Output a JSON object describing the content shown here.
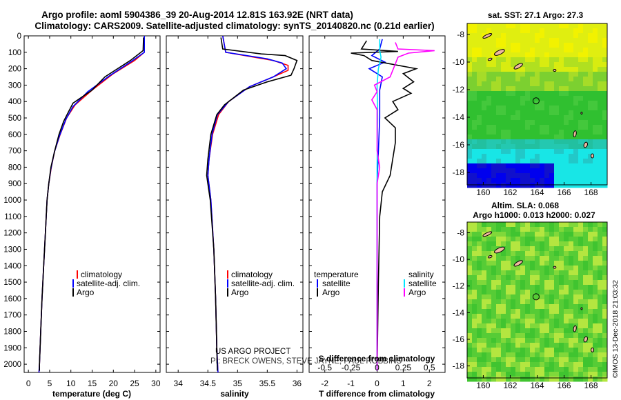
{
  "header": {
    "line1": "Argo profile: aoml 5904386_39 20-Aug-2014 12.81S 163.92E (NRT data)",
    "line2": "Climatology: CARS2009. Satellite-adjusted climatology: synTS_20140820.nc (0.21d earlier)"
  },
  "colors": {
    "climatology": "#ff0000",
    "satellite": "#0000ff",
    "argo": "#000000",
    "satellite_salinity": "#00e5ff",
    "argo_salinity_diff": "#ff00ff",
    "sst_map_yellow": "#e8f000",
    "sst_map_green": "#2ec22e",
    "land": "#f0b8a0"
  },
  "chart_data": [
    {
      "id": "temperature",
      "type": "line",
      "xlabel": "temperature (deg C)",
      "xlim": [
        -1,
        31
      ],
      "xticks": [
        0,
        5,
        10,
        15,
        20,
        25,
        30
      ],
      "ylim": [
        2050,
        0
      ],
      "yticks": [
        0,
        100,
        200,
        300,
        400,
        500,
        600,
        700,
        800,
        900,
        1000,
        1100,
        1200,
        1300,
        1400,
        1500,
        1600,
        1700,
        1800,
        1900,
        2000
      ],
      "legend": [
        "climatology",
        "satellite-adj. clim.",
        "Argo"
      ],
      "series": [
        {
          "name": "climatology",
          "color": "#ff0000",
          "points": [
            [
              27.3,
              0
            ],
            [
              27.3,
              100
            ],
            [
              25,
              150
            ],
            [
              20,
              230
            ],
            [
              15,
              330
            ],
            [
              11,
              420
            ],
            [
              9,
              500
            ],
            [
              7.5,
              600
            ],
            [
              6.2,
              700
            ],
            [
              5.4,
              800
            ],
            [
              4.8,
              900
            ],
            [
              4.4,
              1000
            ],
            [
              4.0,
              1200
            ],
            [
              3.6,
              1400
            ],
            [
              3.2,
              1600
            ],
            [
              2.9,
              1800
            ],
            [
              2.6,
              2000
            ],
            [
              2.5,
              2050
            ]
          ]
        },
        {
          "name": "satellite-adj. clim.",
          "color": "#0000ff",
          "points": [
            [
              27.3,
              0
            ],
            [
              27.3,
              100
            ],
            [
              24,
              160
            ],
            [
              19,
              245
            ],
            [
              14,
              340
            ],
            [
              10.5,
              430
            ],
            [
              8.8,
              510
            ],
            [
              7.3,
              610
            ],
            [
              6.1,
              710
            ],
            [
              5.3,
              810
            ],
            [
              4.8,
              900
            ],
            [
              4.4,
              1000
            ],
            [
              4.0,
              1200
            ],
            [
              3.6,
              1400
            ],
            [
              3.2,
              1600
            ],
            [
              2.9,
              1800
            ],
            [
              2.6,
              2000
            ],
            [
              2.5,
              2050
            ]
          ]
        },
        {
          "name": "Argo",
          "color": "#000000",
          "points": [
            [
              27.1,
              10
            ],
            [
              27.0,
              90
            ],
            [
              24,
              150
            ],
            [
              18,
              250
            ],
            [
              15,
              330
            ],
            [
              10.5,
              410
            ],
            [
              9.5,
              460
            ],
            [
              8.3,
              520
            ],
            [
              7.2,
              600
            ],
            [
              6.2,
              700
            ],
            [
              5.3,
              800
            ],
            [
              4.8,
              900
            ],
            [
              4.4,
              1000
            ],
            [
              4.0,
              1200
            ],
            [
              3.6,
              1400
            ],
            [
              3.2,
              1600
            ],
            [
              2.9,
              1800
            ],
            [
              2.6,
              2000
            ],
            [
              2.6,
              2040
            ]
          ]
        }
      ]
    },
    {
      "id": "salinity",
      "type": "line",
      "xlabel": "salinity",
      "xlim": [
        33.8,
        36.1
      ],
      "xticks": [
        34,
        34.5,
        35,
        35.5,
        36
      ],
      "ylim": [
        2050,
        0
      ],
      "legend": [
        "climatology",
        "satellite-adj. clim.",
        "Argo"
      ],
      "series": [
        {
          "name": "climatology",
          "color": "#ff0000",
          "points": [
            [
              34.75,
              0
            ],
            [
              34.8,
              100
            ],
            [
              35.6,
              150
            ],
            [
              35.85,
              180
            ],
            [
              35.85,
              210
            ],
            [
              35.6,
              250
            ],
            [
              35.2,
              310
            ],
            [
              34.85,
              400
            ],
            [
              34.68,
              480
            ],
            [
              34.58,
              600
            ],
            [
              34.52,
              750
            ],
            [
              34.5,
              850
            ],
            [
              34.55,
              1000
            ],
            [
              34.6,
              1300
            ],
            [
              34.63,
              1600
            ],
            [
              34.65,
              1900
            ],
            [
              34.67,
              2050
            ]
          ]
        },
        {
          "name": "satellite-adj. clim.",
          "color": "#0000ff",
          "points": [
            [
              34.75,
              0
            ],
            [
              34.8,
              100
            ],
            [
              35.5,
              140
            ],
            [
              35.75,
              165
            ],
            [
              35.82,
              200
            ],
            [
              35.6,
              250
            ],
            [
              35.2,
              310
            ],
            [
              34.85,
              400
            ],
            [
              34.66,
              480
            ],
            [
              34.57,
              600
            ],
            [
              34.52,
              750
            ],
            [
              34.5,
              850
            ],
            [
              34.55,
              1000
            ],
            [
              34.6,
              1300
            ],
            [
              34.63,
              1600
            ],
            [
              34.65,
              1900
            ],
            [
              34.67,
              2050
            ]
          ]
        },
        {
          "name": "Argo",
          "color": "#000000",
          "points": [
            [
              34.72,
              10
            ],
            [
              34.75,
              80
            ],
            [
              35.4,
              110
            ],
            [
              35.8,
              120
            ],
            [
              36.0,
              150
            ],
            [
              35.95,
              200
            ],
            [
              35.9,
              240
            ],
            [
              35.5,
              280
            ],
            [
              35.1,
              330
            ],
            [
              34.78,
              420
            ],
            [
              34.65,
              480
            ],
            [
              34.55,
              600
            ],
            [
              34.5,
              750
            ],
            [
              34.48,
              850
            ],
            [
              34.54,
              1000
            ],
            [
              34.6,
              1300
            ],
            [
              34.63,
              1600
            ],
            [
              34.65,
              1900
            ],
            [
              34.66,
              2040
            ]
          ]
        }
      ]
    },
    {
      "id": "difference",
      "type": "line",
      "xlabel": "T difference from climatology",
      "top_xlabel": "S difference from climatology",
      "xlim": [
        -2.6,
        2.6
      ],
      "xticks": [
        -2,
        -1,
        0,
        1,
        2
      ],
      "top_xticks": [
        "-0.5",
        "-0.25",
        "0",
        "0.25",
        "0.5"
      ],
      "ylim": [
        2050,
        0
      ],
      "legend_left_title": "temperature",
      "legend_right_title": "salinity",
      "legend": [
        "satellite",
        "Argo",
        "satellite",
        "Argo"
      ],
      "series": [
        {
          "name": "T satellite",
          "color": "#0000ff",
          "points": [
            [
              0.2,
              20
            ],
            [
              0.1,
              80
            ],
            [
              -0.2,
              120
            ],
            [
              0.3,
              160
            ],
            [
              -0.3,
              200
            ],
            [
              0.2,
              250
            ],
            [
              0.1,
              330
            ],
            [
              0.1,
              500
            ],
            [
              0.05,
              700
            ],
            [
              0.0,
              900
            ],
            [
              0.0,
              1200
            ],
            [
              0.0,
              2040
            ]
          ]
        },
        {
          "name": "T Argo",
          "color": "#000000",
          "points": [
            [
              -0.4,
              30
            ],
            [
              -0.6,
              80
            ],
            [
              0.8,
              95
            ],
            [
              -1.0,
              105
            ],
            [
              -0.5,
              120
            ],
            [
              -0.2,
              150
            ],
            [
              1.5,
              200
            ],
            [
              1.0,
              230
            ],
            [
              1.4,
              280
            ],
            [
              1.0,
              320
            ],
            [
              1.3,
              350
            ],
            [
              0.6,
              400
            ],
            [
              0.8,
              450
            ],
            [
              0.3,
              500
            ],
            [
              0.7,
              560
            ],
            [
              0.7,
              650
            ],
            [
              0.6,
              750
            ],
            [
              0.5,
              850
            ],
            [
              0.2,
              950
            ],
            [
              0.1,
              1100
            ],
            [
              0.05,
              1500
            ],
            [
              0.0,
              2040
            ]
          ]
        },
        {
          "name": "S satellite",
          "color": "#00e5ff",
          "points": [
            [
              0.1,
              20
            ],
            [
              0.1,
              90
            ],
            [
              0.15,
              130
            ],
            [
              0.05,
              200
            ],
            [
              0.0,
              300
            ],
            [
              0.02,
              500
            ],
            [
              0.0,
              800
            ],
            [
              0.0,
              1200
            ],
            [
              0.0,
              2040
            ]
          ]
        },
        {
          "name": "S Argo",
          "color": "#ff00ff",
          "points": [
            [
              0.7,
              40
            ],
            [
              0.8,
              80
            ],
            [
              2.2,
              90
            ],
            [
              1.2,
              105
            ],
            [
              0.8,
              130
            ],
            [
              0.5,
              250
            ],
            [
              -0.1,
              300
            ],
            [
              0.0,
              340
            ],
            [
              -0.2,
              390
            ],
            [
              0.0,
              450
            ],
            [
              0.0,
              700
            ],
            [
              0.1,
              800
            ],
            [
              0.0,
              900
            ],
            [
              0.0,
              2040
            ]
          ]
        }
      ]
    },
    {
      "id": "sst_map",
      "type": "heatmap",
      "title": "sat. SST: 27.1 Argo: 27.3",
      "xticks": [
        160,
        162,
        164,
        166,
        168
      ],
      "yticks": [
        -8,
        -10,
        -12,
        -14,
        -16,
        -18
      ],
      "xlim": [
        158.8,
        169.2
      ],
      "ylim": [
        -18.9,
        -7.2
      ],
      "argo_position": [
        163.92,
        -12.81
      ]
    },
    {
      "id": "sla_map",
      "type": "heatmap",
      "title": "Altim. SLA: 0.068",
      "subtitle": "Argo h1000: 0.013 h2000: 0.027",
      "xticks": [
        160,
        162,
        164,
        166,
        168
      ],
      "yticks": [
        -8,
        -10,
        -12,
        -14,
        -16,
        -18
      ],
      "xlim": [
        158.8,
        169.2
      ],
      "ylim": [
        -18.9,
        -7.2
      ],
      "argo_position": [
        163.92,
        -12.81
      ]
    }
  ],
  "legend_labels": {
    "climatology": "climatology",
    "satellite_adj": "satellite-adj. clim.",
    "argo": "Argo",
    "temperature": "temperature",
    "salinity": "salinity",
    "satellite": "satellite"
  },
  "credits": {
    "project": "US ARGO PROJECT",
    "pi": "PI: BRECK OWENS, STEVE JAYNE, PAUL ROBBINS",
    "imos": "©IMOS 13-Dec-2018 21:03:32"
  }
}
